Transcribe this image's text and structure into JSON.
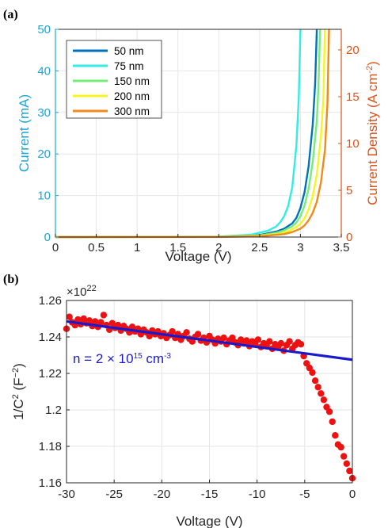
{
  "chart_data": [
    {
      "panel_label": "(a)",
      "type": "line",
      "xlabel": "Voltage (V)",
      "ylabel": "Current (mA)",
      "ylabel_right": "Current Density (A cm",
      "ylabel_right_sup": "-2",
      "ylabel_right_end": ")",
      "xlim": [
        0,
        3.5
      ],
      "ylim": [
        0,
        50
      ],
      "ylim_right": [
        0,
        22.2
      ],
      "x_ticks": [
        "0",
        "0.5",
        "1",
        "1.5",
        "2",
        "2.5",
        "3",
        "3.5"
      ],
      "y_ticks": [
        "0",
        "10",
        "20",
        "30",
        "40",
        "50"
      ],
      "y_ticks_right": [
        "0",
        "5",
        "10",
        "15",
        "20"
      ],
      "grid": true,
      "legend_position": "top-left",
      "colors": {
        "left_axis": "#1ba6d8",
        "right_axis": "#d9531a"
      },
      "series": [
        {
          "name": "50 nm",
          "color": "#0072bd",
          "x": [
            0,
            2.0,
            2.5,
            2.7,
            2.8,
            2.9,
            2.95,
            3.0,
            3.05,
            3.1,
            3.15,
            3.18,
            3.2
          ],
          "y": [
            0,
            0.05,
            0.5,
            1.3,
            2.0,
            3.3,
            4.6,
            7.0,
            10.8,
            17.0,
            27.0,
            37.0,
            50
          ]
        },
        {
          "name": "75 nm",
          "color": "#33ede2",
          "x": [
            0,
            2.0,
            2.4,
            2.6,
            2.7,
            2.75,
            2.8,
            2.85,
            2.9,
            2.95,
            2.98,
            3.0
          ],
          "y": [
            0,
            0.1,
            0.6,
            1.5,
            2.5,
            3.5,
            5.0,
            7.5,
            12.0,
            22.0,
            34.0,
            50
          ]
        },
        {
          "name": "150 nm",
          "color": "#77ec77",
          "x": [
            0,
            2.0,
            2.5,
            2.7,
            2.8,
            2.9,
            2.95,
            3.0,
            3.05,
            3.1,
            3.15,
            3.2,
            3.22,
            3.24
          ],
          "y": [
            0,
            0.04,
            0.4,
            1.0,
            1.6,
            2.6,
            3.5,
            5.0,
            7.6,
            11.6,
            18.0,
            28.0,
            36.0,
            50
          ]
        },
        {
          "name": "200 nm",
          "color": "#f5f522",
          "x": [
            0,
            2.0,
            2.5,
            2.75,
            2.85,
            2.95,
            3.0,
            3.05,
            3.1,
            3.15,
            3.2,
            3.25,
            3.28,
            3.3
          ],
          "y": [
            0,
            0.03,
            0.3,
            0.8,
            1.4,
            2.4,
            3.2,
            4.5,
            6.6,
            9.8,
            15.0,
            24.0,
            33.0,
            50
          ]
        },
        {
          "name": "300 nm",
          "color": "#f08a1c",
          "x": [
            0,
            2.0,
            2.5,
            2.8,
            2.9,
            3.0,
            3.05,
            3.1,
            3.15,
            3.2,
            3.25,
            3.3,
            3.33,
            3.35
          ],
          "y": [
            0,
            0.02,
            0.2,
            0.7,
            1.2,
            2.0,
            2.8,
            4.0,
            5.8,
            8.5,
            13.0,
            21.0,
            32.0,
            50
          ]
        }
      ]
    },
    {
      "panel_label": "(b)",
      "type": "scatter",
      "xlabel": "Voltage (V)",
      "ylabel": "1/C",
      "ylabel_sup": "2",
      "ylabel_unit": " (F",
      "ylabel_unit_sup": "−2",
      "ylabel_end": ")",
      "y_multiplier": "×10",
      "y_multiplier_exp": "22",
      "xlim": [
        -30,
        0
      ],
      "ylim": [
        1.16,
        1.26
      ],
      "x_ticks": [
        "-30",
        "-25",
        "-20",
        "-15",
        "-10",
        "-5",
        "0"
      ],
      "y_ticks": [
        "1.16",
        "1.18",
        "1.2",
        "1.22",
        "1.24",
        "1.26"
      ],
      "grid": true,
      "annotation": {
        "text": "n = 2 × 10",
        "sup": "15",
        "unit": " cm",
        "unit_sup": "-3",
        "color": "#1a1acc"
      },
      "colors": {
        "points": "#ee1111",
        "fit": "#1a1acc"
      },
      "series": [
        {
          "kind": "points",
          "x": [
            -30,
            -29.7,
            -29.4,
            -29.1,
            -28.8,
            -28.5,
            -28.2,
            -27.9,
            -27.6,
            -27.3,
            -27.0,
            -26.7,
            -26.4,
            -26.1,
            -25.8,
            -25.5,
            -25.2,
            -24.9,
            -24.6,
            -24.3,
            -24.0,
            -23.7,
            -23.4,
            -23.1,
            -22.8,
            -22.5,
            -22.2,
            -21.9,
            -21.6,
            -21.3,
            -21.0,
            -20.7,
            -20.4,
            -20.1,
            -19.8,
            -19.5,
            -19.2,
            -18.9,
            -18.6,
            -18.3,
            -18.0,
            -17.7,
            -17.4,
            -17.1,
            -16.8,
            -16.5,
            -16.2,
            -15.9,
            -15.6,
            -15.3,
            -15.0,
            -14.7,
            -14.4,
            -14.1,
            -13.8,
            -13.5,
            -13.2,
            -12.9,
            -12.6,
            -12.3,
            -12.0,
            -11.7,
            -11.4,
            -11.1,
            -10.8,
            -10.5,
            -10.2,
            -9.9,
            -9.6,
            -9.3,
            -9.0,
            -8.7,
            -8.4,
            -8.1,
            -7.8,
            -7.5,
            -7.2,
            -6.9,
            -6.6,
            -6.3,
            -6.0,
            -5.7,
            -5.4,
            -5.1,
            -4.8,
            -4.5,
            -4.2,
            -3.9,
            -3.6,
            -3.3,
            -3.0,
            -2.7,
            -2.4,
            -2.1,
            -1.8,
            -1.5,
            -1.2,
            -0.9,
            -0.6,
            -0.3,
            0.0
          ],
          "y": [
            1.2445,
            1.251,
            1.248,
            1.2465,
            1.2495,
            1.247,
            1.25,
            1.2475,
            1.249,
            1.246,
            1.2485,
            1.2455,
            1.248,
            1.252,
            1.2465,
            1.244,
            1.2475,
            1.245,
            1.2465,
            1.2435,
            1.246,
            1.2445,
            1.2425,
            1.2455,
            1.243,
            1.2445,
            1.2415,
            1.244,
            1.2425,
            1.2405,
            1.2435,
            1.2415,
            1.243,
            1.2405,
            1.242,
            1.2395,
            1.241,
            1.243,
            1.2395,
            1.2415,
            1.2385,
            1.2405,
            1.2425,
            1.239,
            1.2375,
            1.24,
            1.2415,
            1.238,
            1.2395,
            1.237,
            1.2405,
            1.2385,
            1.2365,
            1.239,
            1.2375,
            1.2395,
            1.236,
            1.238,
            1.2395,
            1.237,
            1.2355,
            1.2385,
            1.2365,
            1.238,
            1.235,
            1.2375,
            1.236,
            1.2385,
            1.2345,
            1.2365,
            1.235,
            1.2375,
            1.2335,
            1.236,
            1.2345,
            1.2365,
            1.2325,
            1.2355,
            1.2375,
            1.2335,
            1.2355,
            1.237,
            1.236,
            1.2295,
            1.2255,
            1.223,
            1.2205,
            1.216,
            1.2125,
            1.209,
            1.2055,
            1.2015,
            1.199,
            1.1935,
            1.186,
            1.181,
            1.1795,
            1.1745,
            1.1705,
            1.1665,
            1.1625
          ]
        },
        {
          "kind": "fit",
          "x": [
            -30,
            0
          ],
          "y": [
            1.2485,
            1.2275
          ]
        }
      ]
    }
  ]
}
